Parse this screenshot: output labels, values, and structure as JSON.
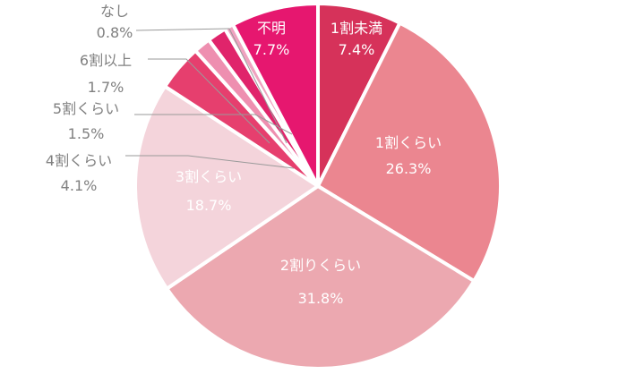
{
  "chart_data": {
    "type": "pie",
    "start": "top",
    "direction": "clockwise",
    "slices": [
      {
        "label": "1割未満",
        "value": 7.4,
        "value_label": "7.4%",
        "color": "#d6325a",
        "label_style": "inside"
      },
      {
        "label": "1割くらい",
        "value": 26.3,
        "value_label": "26.3%",
        "color": "#eb8690",
        "label_style": "inside"
      },
      {
        "label": "2割りくらい",
        "value": 31.8,
        "value_label": "31.8%",
        "color": "#eca8b0",
        "label_style": "inside"
      },
      {
        "label": "3割くらい",
        "value": 18.7,
        "value_label": "18.7%",
        "color": "#f4d4db",
        "label_style": "inside"
      },
      {
        "label": "4割くらい",
        "value": 4.1,
        "value_label": "4.1%",
        "color": "#e63f6e",
        "label_style": "outside"
      },
      {
        "label": "5割くらい",
        "value": 1.5,
        "value_label": "1.5%",
        "color": "#ee8fb0",
        "label_style": "outside"
      },
      {
        "label": "6割以上",
        "value": 1.7,
        "value_label": "1.7%",
        "color": "#e0246b",
        "label_style": "outside"
      },
      {
        "label": "なし",
        "value": 0.8,
        "value_label": "0.8%",
        "color": "#f0a2c0",
        "label_style": "outside"
      },
      {
        "label": "不明",
        "value": 7.7,
        "value_label": "7.7%",
        "color": "#e6176f",
        "label_style": "inside"
      }
    ]
  }
}
